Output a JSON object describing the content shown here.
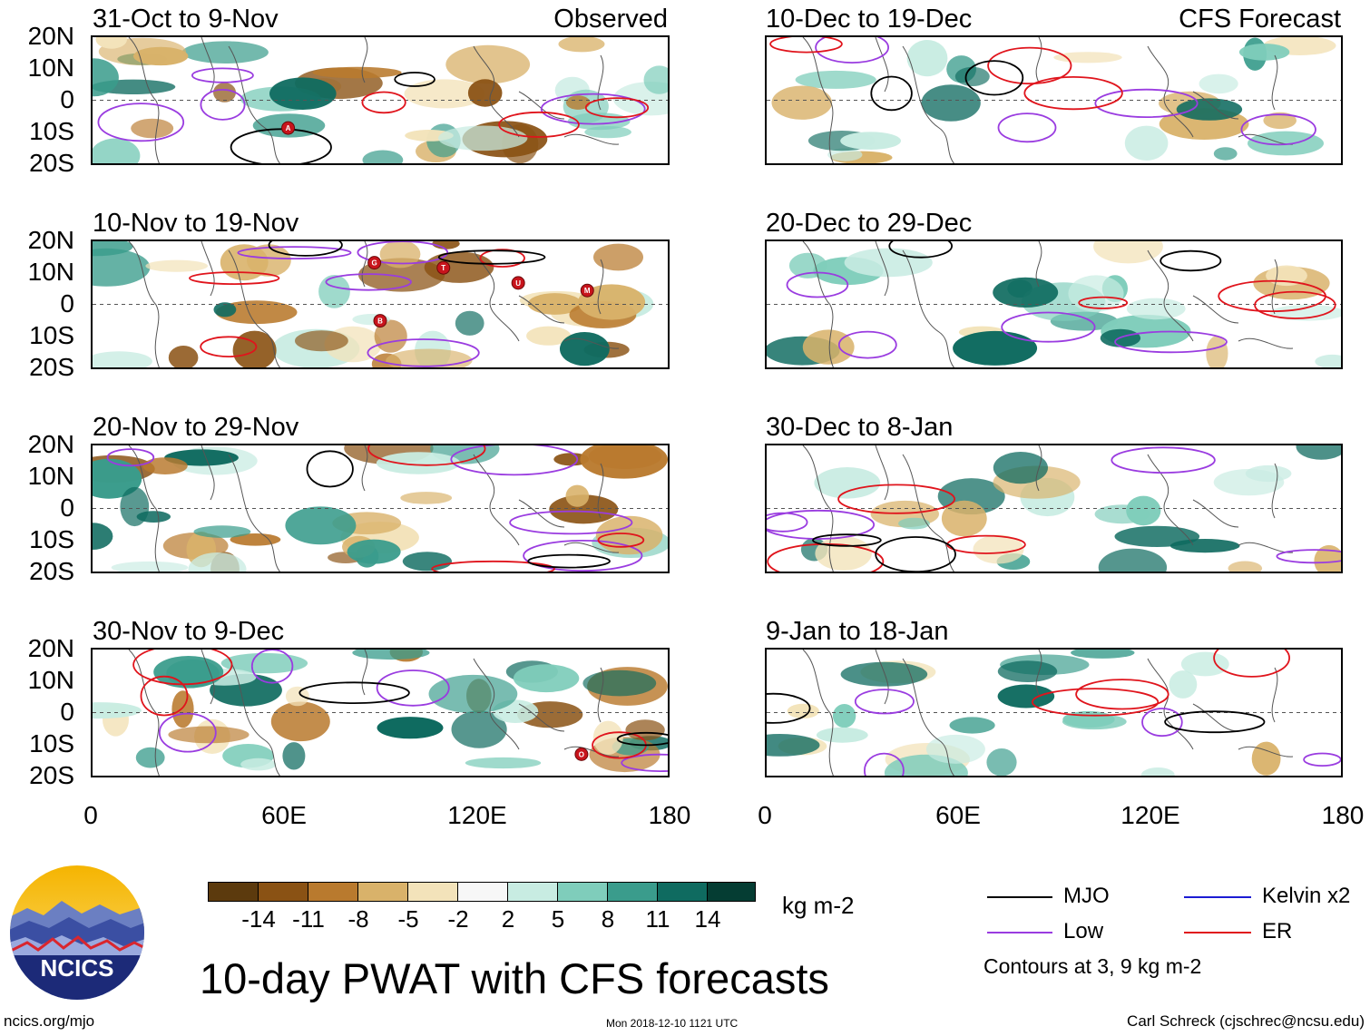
{
  "title": "10-day PWAT with CFS forecasts",
  "units": "kg m-2",
  "site": "ncics.org/mjo",
  "timestamp": "Mon 2018-12-10 1121 UTC",
  "author": "Carl Schreck (cjschrec@ncsu.edu)",
  "logo_text": "NCICS",
  "labels": {
    "observed": "Observed",
    "forecast": "CFS Forecast"
  },
  "y_ticks": [
    "20N",
    "10N",
    "0",
    "10S",
    "20S"
  ],
  "x_ticks": [
    "0",
    "60E",
    "120E",
    "180"
  ],
  "panels_observed": [
    {
      "title": "31-Oct to 9-Nov"
    },
    {
      "title": "10-Nov to 19-Nov"
    },
    {
      "title": "20-Nov to 29-Nov"
    },
    {
      "title": "30-Nov to 9-Dec"
    }
  ],
  "panels_forecast": [
    {
      "title": "10-Dec to 19-Dec"
    },
    {
      "title": "20-Dec to 29-Dec"
    },
    {
      "title": "30-Dec to 8-Jan"
    },
    {
      "title": "9-Jan to 18-Jan"
    }
  ],
  "colorbar": {
    "tick_labels": [
      "-14",
      "-11",
      "-8",
      "-5",
      "-2",
      "2",
      "5",
      "8",
      "11",
      "14"
    ],
    "colors": [
      "#5c3a0d",
      "#8a5214",
      "#b97a2e",
      "#d9b26a",
      "#f3e3ba",
      "#f7f7f7",
      "#c8ece2",
      "#7fcdbb",
      "#3a9c8c",
      "#0f6b60",
      "#053d33"
    ]
  },
  "legend": {
    "items": [
      {
        "label": "MJO",
        "color": "#000000"
      },
      {
        "label": "Kelvin x2",
        "color": "#1c1cd4"
      },
      {
        "label": "Low",
        "color": "#9a3ce0"
      },
      {
        "label": "ER",
        "color": "#e0141c"
      }
    ],
    "note": "Contours at 3, 9 kg m-2"
  },
  "storm_markers": [
    "A",
    "G",
    "T",
    "U",
    "M",
    "B",
    "O"
  ]
}
